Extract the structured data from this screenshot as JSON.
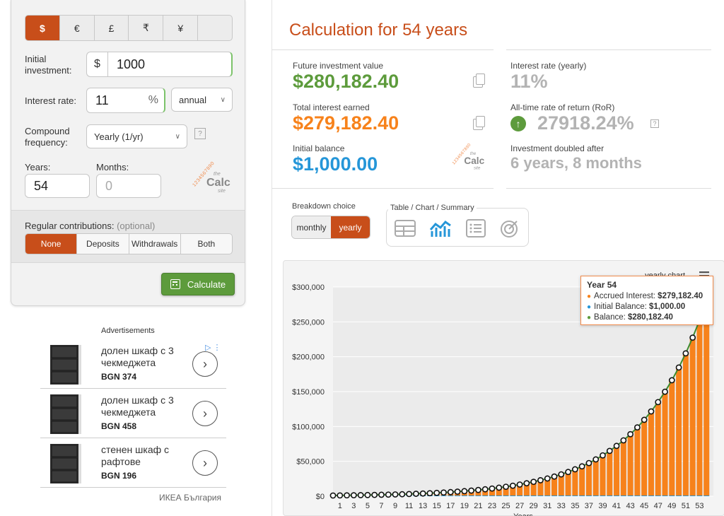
{
  "form": {
    "currencies": [
      {
        "symbol": "$",
        "active": true
      },
      {
        "symbol": "€",
        "active": false
      },
      {
        "symbol": "£",
        "active": false
      },
      {
        "symbol": "₹",
        "active": false
      },
      {
        "symbol": "¥",
        "active": false
      },
      {
        "symbol": "",
        "active": false
      }
    ],
    "initial_label": "Initial investment:",
    "initial_prefix": "$",
    "initial_value": "1000",
    "rate_label": "Interest rate:",
    "rate_value": "11",
    "rate_suffix": "%",
    "rate_period": "annual",
    "compound_label": "Compound frequency:",
    "compound_value": "Yearly (1/yr)",
    "help": "?",
    "years_label": "Years:",
    "years_value": "54",
    "months_label": "Months:",
    "months_placeholder": "0",
    "contrib_label": "Regular contributions:",
    "contrib_optional": "(optional)",
    "contrib_options": [
      "None",
      "Deposits",
      "Withdrawals",
      "Both"
    ],
    "calculate_label": "Calculate"
  },
  "logo": {
    "digits": "1234567890",
    "the": "the",
    "calc": "Calc",
    "site": "site"
  },
  "ads": {
    "title": "Advertisements",
    "items": [
      {
        "title": "долен шкаф с 3 чекмеджета",
        "price": "BGN 374"
      },
      {
        "title": "долен шкаф с 3 чекмеджета",
        "price": "BGN 458"
      },
      {
        "title": "стенен шкаф с рафтове",
        "price": "BGN 196"
      }
    ],
    "footer": "ИКЕА България"
  },
  "results": {
    "title": "Calculation for 54 years",
    "future_label": "Future investment value",
    "future_value": "$280,182.40",
    "interest_label": "Total interest earned",
    "interest_value": "$279,182.40",
    "initial_label": "Initial balance",
    "initial_value": "$1,000.00",
    "rate_label": "Interest rate (yearly)",
    "rate_value": "11%",
    "ror_label": "All-time rate of return (RoR)",
    "ror_value": "27918.24%",
    "doubled_label": "Investment doubled after",
    "doubled_value": "6 years, 8 months",
    "breakdown_label": "Breakdown choice",
    "breakdown_options": [
      "monthly",
      "yearly"
    ],
    "view_label": "Table / Chart / Summary",
    "colors": {
      "orange": "#f7821b",
      "green": "#5d9b3c",
      "blue": "#2596d8",
      "gray": "#b3b3b3",
      "brand": "#c84e1a"
    }
  },
  "chart_data": {
    "type": "bar",
    "title": "yearly chart",
    "xlabel": "Years",
    "ylabel": "",
    "x_ticks": [
      "1",
      "3",
      "5",
      "7",
      "9",
      "11",
      "13",
      "15",
      "17",
      "19",
      "21",
      "23",
      "25",
      "27",
      "29",
      "31",
      "33",
      "35",
      "37",
      "39",
      "41",
      "43",
      "45",
      "47",
      "49",
      "51",
      "53"
    ],
    "y_ticks": [
      "$0",
      "$50,000",
      "$100,000",
      "$150,000",
      "$200,000",
      "$250,000",
      "$300,000"
    ],
    "ylim": [
      0,
      300000
    ],
    "principal": 1000,
    "rate": 0.11,
    "years": 54,
    "series": [
      {
        "name": "Accrued Interest",
        "color": "#f7821b",
        "kind": "bar",
        "formula": "1000*1.11^year - 1000"
      },
      {
        "name": "Initial Balance",
        "color": "#2596d8",
        "kind": "bar",
        "formula": "1000"
      },
      {
        "name": "Balance",
        "color": "#5d9b3c",
        "kind": "line",
        "formula": "1000*1.11^year"
      }
    ],
    "tooltip": {
      "title": "Year 54",
      "rows": [
        {
          "name": "Accrued Interest",
          "value": "$279,182.40"
        },
        {
          "name": "Initial Balance",
          "value": "$1,000.00"
        },
        {
          "name": "Balance",
          "value": "$280,182.40"
        }
      ]
    }
  }
}
